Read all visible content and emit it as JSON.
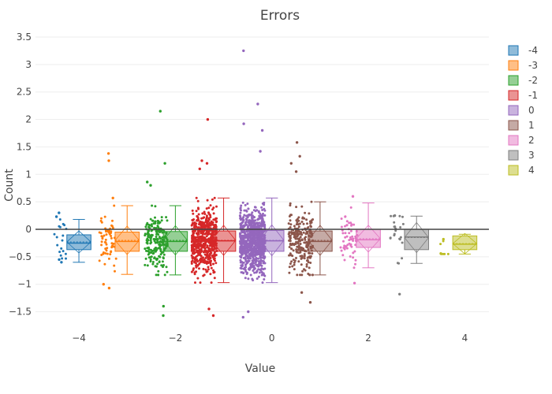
{
  "chart_data": {
    "type": "box",
    "title": "Errors",
    "xlabel": "Value",
    "ylabel": "Count",
    "xlim": [
      -4.9,
      4.5
    ],
    "ylim": [
      -1.85,
      3.6
    ],
    "xticks": [
      -4,
      -2,
      0,
      2,
      4
    ],
    "yticks": [
      -1.5,
      -1,
      -0.5,
      0,
      0.5,
      1,
      1.5,
      2,
      2.5,
      3,
      3.5
    ],
    "grid": true,
    "zero_line": true,
    "legend_position": "top-right",
    "series": [
      {
        "name": "-4",
        "color": "#1f77b4",
        "x": -4,
        "n": 18,
        "jitter_center": -4.4,
        "min": -0.6,
        "q1": -0.37,
        "median": -0.25,
        "mean": -0.23,
        "q3": -0.1,
        "max": 0.18,
        "fliers": [
          0.3,
          0.23,
          -0.55,
          -0.6
        ]
      },
      {
        "name": "-3",
        "color": "#ff7f0e",
        "x": -3,
        "n": 60,
        "jitter_center": -3.4,
        "min": -0.82,
        "q1": -0.4,
        "median": -0.22,
        "mean": -0.2,
        "q3": -0.05,
        "max": 0.43,
        "fliers": [
          1.38,
          1.25,
          0.57,
          -1.0,
          -1.07
        ]
      },
      {
        "name": "-2",
        "color": "#2ca02c",
        "x": -2,
        "n": 200,
        "jitter_center": -2.4,
        "min": -0.83,
        "q1": -0.4,
        "median": -0.22,
        "mean": -0.2,
        "q3": -0.04,
        "max": 0.43,
        "fliers": [
          2.15,
          1.2,
          0.86,
          0.8,
          -1.4,
          -1.57
        ]
      },
      {
        "name": "-1",
        "color": "#d62728",
        "x": -1,
        "n": 600,
        "jitter_center": -1.4,
        "min": -0.97,
        "q1": -0.4,
        "median": -0.21,
        "mean": -0.2,
        "q3": -0.03,
        "max": 0.57,
        "fliers": [
          2.0,
          1.25,
          1.2,
          1.1,
          -1.45,
          -1.57
        ]
      },
      {
        "name": "0",
        "color": "#9467bd",
        "x": 0,
        "n": 900,
        "jitter_center": -0.4,
        "min": -0.97,
        "q1": -0.4,
        "median": -0.21,
        "mean": -0.2,
        "q3": -0.02,
        "max": 0.57,
        "fliers": [
          3.25,
          2.28,
          1.92,
          1.8,
          1.42,
          -1.5,
          -1.6
        ]
      },
      {
        "name": "1",
        "color": "#8c564b",
        "x": 1,
        "n": 240,
        "jitter_center": 0.6,
        "min": -0.83,
        "q1": -0.4,
        "median": -0.22,
        "mean": -0.2,
        "q3": -0.03,
        "max": 0.5,
        "fliers": [
          1.58,
          1.33,
          1.2,
          1.05,
          -1.15,
          -1.33
        ]
      },
      {
        "name": "2",
        "color": "#e377c2",
        "x": 2,
        "n": 60,
        "jitter_center": 1.6,
        "min": -0.7,
        "q1": -0.33,
        "median": -0.19,
        "mean": -0.17,
        "q3": 0.0,
        "max": 0.48,
        "fliers": [
          0.6,
          -0.98
        ]
      },
      {
        "name": "3",
        "color": "#7f7f7f",
        "x": 3,
        "n": 22,
        "jitter_center": 2.6,
        "min": -0.62,
        "q1": -0.37,
        "median": -0.14,
        "mean": -0.15,
        "q3": 0.0,
        "max": 0.24,
        "fliers": [
          0.25,
          -1.18
        ]
      },
      {
        "name": "4",
        "color": "#bcbd22",
        "x": 4,
        "n": 6,
        "jitter_center": 3.6,
        "min": -0.45,
        "q1": -0.37,
        "median": -0.27,
        "mean": -0.26,
        "q3": -0.12,
        "max": -0.09,
        "fliers": [
          -0.44,
          -0.18
        ]
      }
    ]
  }
}
